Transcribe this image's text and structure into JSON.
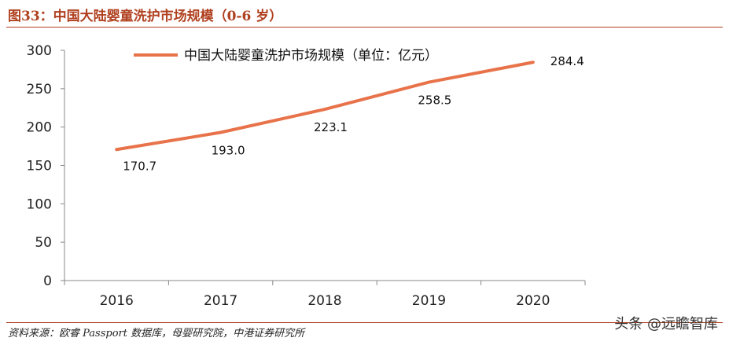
{
  "figure_title": "图33：中国大陆婴童洗护市场规模（0-6 岁）",
  "source": "资料来源：欧睿 Passport 数据库，母婴研究院，中港证券研究所",
  "watermark": "头条 @远瞻智库",
  "chart_data": {
    "type": "line",
    "categories": [
      "2016",
      "2017",
      "2018",
      "2019",
      "2020"
    ],
    "series": [
      {
        "name": "中国大陆婴童洗护市场规模（单位：亿元）",
        "values": [
          170.7,
          193.0,
          223.1,
          258.5,
          284.4
        ]
      }
    ],
    "data_labels": [
      "170.7",
      "193.0",
      "223.1",
      "258.5",
      "284.4"
    ],
    "y_ticks": [
      "0",
      "50",
      "100",
      "150",
      "200",
      "250",
      "300"
    ],
    "ylim": [
      0,
      300
    ],
    "grid": false,
    "legend_position": "top",
    "line_color": "#e8734a"
  }
}
